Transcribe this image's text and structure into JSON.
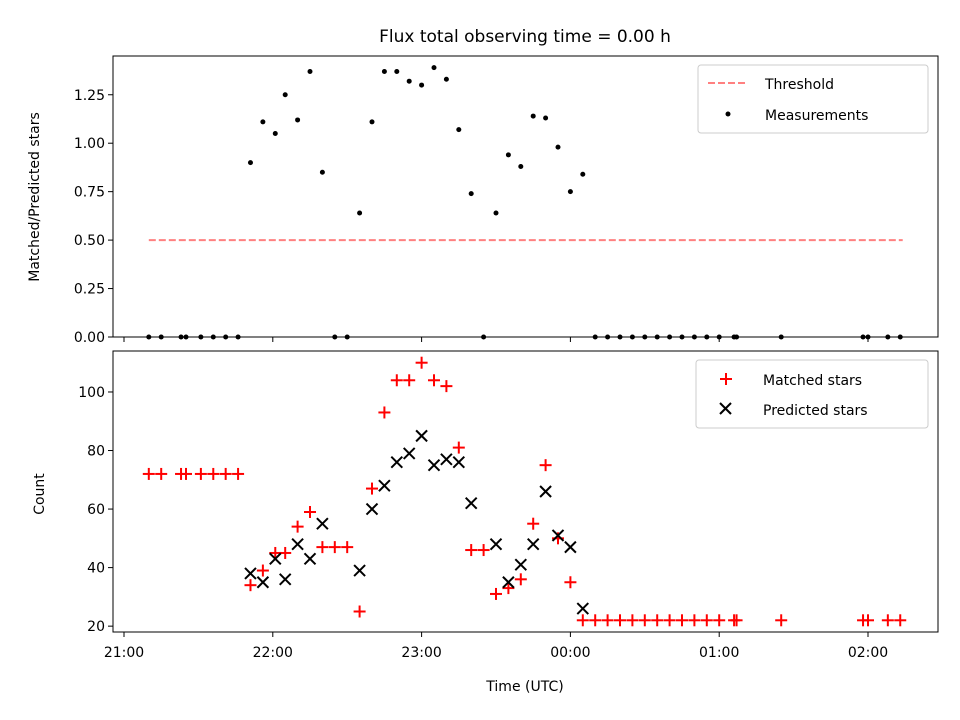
{
  "chart_data": [
    {
      "type": "scatter",
      "title": "Flux total observing time = 0.00 h",
      "xlabel": "",
      "ylabel": "Matched/Predicted stars",
      "ylim": [
        0,
        1.45
      ],
      "yticks": [
        "0.00",
        "0.25",
        "0.50",
        "0.75",
        "1.00",
        "1.25"
      ],
      "legend_position": "upper right",
      "grid": false,
      "colors": {
        "threshold": "#ff8080",
        "measurements": "#000000"
      },
      "threshold": {
        "name": "Threshold",
        "y": 0.5,
        "x_start": "21:10",
        "x_end": "02:14"
      },
      "series": [
        {
          "name": "Measurements",
          "marker": "dot",
          "points": [
            [
              "21:10",
              0
            ],
            [
              "21:15",
              0
            ],
            [
              "21:23",
              0
            ],
            [
              "21:25",
              0
            ],
            [
              "21:31",
              0
            ],
            [
              "21:36",
              0
            ],
            [
              "21:41",
              0
            ],
            [
              "21:46",
              0
            ],
            [
              "21:51",
              0.9
            ],
            [
              "21:56",
              1.11
            ],
            [
              "22:01",
              1.05
            ],
            [
              "22:05",
              1.25
            ],
            [
              "22:10",
              1.12
            ],
            [
              "22:15",
              1.37
            ],
            [
              "22:20",
              0.85
            ],
            [
              "22:25",
              0
            ],
            [
              "22:30",
              0
            ],
            [
              "22:35",
              0.64
            ],
            [
              "22:40",
              1.11
            ],
            [
              "22:45",
              1.37
            ],
            [
              "22:50",
              1.37
            ],
            [
              "22:55",
              1.32
            ],
            [
              "23:00",
              1.3
            ],
            [
              "23:05",
              1.39
            ],
            [
              "23:10",
              1.33
            ],
            [
              "23:15",
              1.07
            ],
            [
              "23:20",
              0.74
            ],
            [
              "23:25",
              0
            ],
            [
              "23:30",
              0.64
            ],
            [
              "23:35",
              0.94
            ],
            [
              "23:40",
              0.88
            ],
            [
              "23:45",
              1.14
            ],
            [
              "23:50",
              1.13
            ],
            [
              "23:55",
              0.98
            ],
            [
              "00:00",
              0.75
            ],
            [
              "00:05",
              0.84
            ],
            [
              "00:10",
              0
            ],
            [
              "00:15",
              0
            ],
            [
              "00:20",
              0
            ],
            [
              "00:25",
              0
            ],
            [
              "00:30",
              0
            ],
            [
              "00:35",
              0
            ],
            [
              "00:40",
              0
            ],
            [
              "00:45",
              0
            ],
            [
              "00:50",
              0
            ],
            [
              "00:55",
              0
            ],
            [
              "01:00",
              0
            ],
            [
              "01:06",
              0
            ],
            [
              "01:07",
              0
            ],
            [
              "01:25",
              0
            ],
            [
              "01:58",
              0
            ],
            [
              "02:00",
              0
            ],
            [
              "02:08",
              0
            ],
            [
              "02:13",
              0
            ]
          ]
        }
      ]
    },
    {
      "type": "scatter",
      "title": "",
      "xlabel": "Time (UTC)",
      "ylabel": "Count",
      "ylim": [
        18,
        114
      ],
      "yticks": [
        "20",
        "40",
        "60",
        "80",
        "100"
      ],
      "xticks": [
        "21:00",
        "22:00",
        "23:00",
        "00:00",
        "01:00",
        "02:00"
      ],
      "legend_position": "upper right",
      "grid": false,
      "colors": {
        "matched": "#ff0000",
        "predicted": "#000000"
      },
      "series": [
        {
          "name": "Matched stars",
          "marker": "plus",
          "points": [
            [
              "21:10",
              72
            ],
            [
              "21:15",
              72
            ],
            [
              "21:23",
              72
            ],
            [
              "21:25",
              72
            ],
            [
              "21:31",
              72
            ],
            [
              "21:36",
              72
            ],
            [
              "21:41",
              72
            ],
            [
              "21:46",
              72
            ],
            [
              "21:51",
              34
            ],
            [
              "21:56",
              39
            ],
            [
              "22:01",
              45
            ],
            [
              "22:05",
              45
            ],
            [
              "22:10",
              54
            ],
            [
              "22:15",
              59
            ],
            [
              "22:20",
              47
            ],
            [
              "22:25",
              47
            ],
            [
              "22:30",
              47
            ],
            [
              "22:35",
              25
            ],
            [
              "22:40",
              67
            ],
            [
              "22:45",
              93
            ],
            [
              "22:50",
              104
            ],
            [
              "22:55",
              104
            ],
            [
              "23:00",
              110
            ],
            [
              "23:05",
              104
            ],
            [
              "23:10",
              102
            ],
            [
              "23:15",
              81
            ],
            [
              "23:20",
              46
            ],
            [
              "23:25",
              46
            ],
            [
              "23:30",
              31
            ],
            [
              "23:35",
              33
            ],
            [
              "23:40",
              36
            ],
            [
              "23:45",
              55
            ],
            [
              "23:50",
              75
            ],
            [
              "23:55",
              50
            ],
            [
              "00:00",
              35
            ],
            [
              "00:05",
              22
            ],
            [
              "00:10",
              22
            ],
            [
              "00:15",
              22
            ],
            [
              "00:20",
              22
            ],
            [
              "00:25",
              22
            ],
            [
              "00:30",
              22
            ],
            [
              "00:35",
              22
            ],
            [
              "00:40",
              22
            ],
            [
              "00:45",
              22
            ],
            [
              "00:50",
              22
            ],
            [
              "00:55",
              22
            ],
            [
              "01:00",
              22
            ],
            [
              "01:06",
              22
            ],
            [
              "01:07",
              22
            ],
            [
              "01:25",
              22
            ],
            [
              "01:58",
              22
            ],
            [
              "02:00",
              22
            ],
            [
              "02:08",
              22
            ],
            [
              "02:13",
              22
            ]
          ]
        },
        {
          "name": "Predicted stars",
          "marker": "x",
          "points": [
            [
              "21:51",
              38
            ],
            [
              "21:56",
              35
            ],
            [
              "22:01",
              43
            ],
            [
              "22:05",
              36
            ],
            [
              "22:10",
              48
            ],
            [
              "22:15",
              43
            ],
            [
              "22:20",
              55
            ],
            [
              "22:35",
              39
            ],
            [
              "22:40",
              60
            ],
            [
              "22:45",
              68
            ],
            [
              "22:50",
              76
            ],
            [
              "22:55",
              79
            ],
            [
              "23:00",
              85
            ],
            [
              "23:05",
              75
            ],
            [
              "23:10",
              77
            ],
            [
              "23:15",
              76
            ],
            [
              "23:20",
              62
            ],
            [
              "23:30",
              48
            ],
            [
              "23:35",
              35
            ],
            [
              "23:40",
              41
            ],
            [
              "23:45",
              48
            ],
            [
              "23:50",
              66
            ],
            [
              "23:55",
              51
            ],
            [
              "00:00",
              47
            ],
            [
              "00:05",
              26
            ]
          ]
        }
      ]
    }
  ]
}
